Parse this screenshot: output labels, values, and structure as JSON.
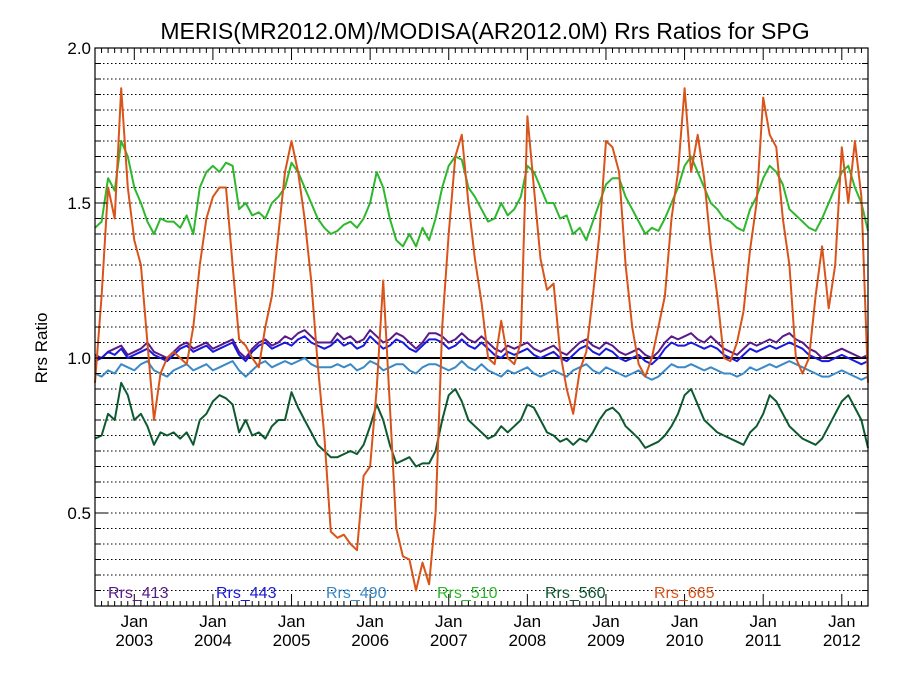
{
  "chart_data": {
    "type": "line",
    "title": "MERIS(MR2012.0M)/MODISA(AR2012.0M)  Rrs Ratios for SPG",
    "xlabel": "",
    "ylabel": "Rrs Ratio",
    "xlim": [
      "2002-07",
      "2012-05"
    ],
    "ylim": [
      0.2,
      2.0
    ],
    "yticks": [
      {
        "value": 0.5,
        "label": "0.5"
      },
      {
        "value": 1.0,
        "label": "1.0"
      },
      {
        "value": 1.5,
        "label": "1.5"
      },
      {
        "value": 2.0,
        "label": "2.0"
      }
    ],
    "xticks": [
      {
        "date": "2003-01",
        "month": "Jan",
        "year": "2003"
      },
      {
        "date": "2004-01",
        "month": "Jan",
        "year": "2004"
      },
      {
        "date": "2005-01",
        "month": "Jan",
        "year": "2005"
      },
      {
        "date": "2006-01",
        "month": "Jan",
        "year": "2006"
      },
      {
        "date": "2007-01",
        "month": "Jan",
        "year": "2007"
      },
      {
        "date": "2008-01",
        "month": "Jan",
        "year": "2008"
      },
      {
        "date": "2009-01",
        "month": "Jan",
        "year": "2009"
      },
      {
        "date": "2010-01",
        "month": "Jan",
        "year": "2010"
      },
      {
        "date": "2011-01",
        "month": "Jan",
        "year": "2011"
      },
      {
        "date": "2012-01",
        "month": "Jan",
        "year": "2012"
      }
    ],
    "reference_line": 1.0,
    "grid": "horizontal dotted",
    "legend_position": "bottom",
    "x_dates": [
      "2002-07",
      "2002-08",
      "2002-09",
      "2002-10",
      "2002-11",
      "2002-12",
      "2003-01",
      "2003-02",
      "2003-03",
      "2003-04",
      "2003-05",
      "2003-06",
      "2003-07",
      "2003-08",
      "2003-09",
      "2003-10",
      "2003-11",
      "2003-12",
      "2004-01",
      "2004-02",
      "2004-03",
      "2004-04",
      "2004-05",
      "2004-06",
      "2004-07",
      "2004-08",
      "2004-09",
      "2004-10",
      "2004-11",
      "2004-12",
      "2005-01",
      "2005-02",
      "2005-03",
      "2005-04",
      "2005-05",
      "2005-06",
      "2005-07",
      "2005-08",
      "2005-09",
      "2005-10",
      "2005-11",
      "2005-12",
      "2006-01",
      "2006-02",
      "2006-03",
      "2006-04",
      "2006-05",
      "2006-06",
      "2006-07",
      "2006-08",
      "2006-09",
      "2006-10",
      "2006-11",
      "2006-12",
      "2007-01",
      "2007-02",
      "2007-03",
      "2007-04",
      "2007-05",
      "2007-06",
      "2007-07",
      "2007-08",
      "2007-09",
      "2007-10",
      "2007-11",
      "2007-12",
      "2008-01",
      "2008-02",
      "2008-03",
      "2008-04",
      "2008-05",
      "2008-06",
      "2008-07",
      "2008-08",
      "2008-09",
      "2008-10",
      "2008-11",
      "2008-12",
      "2009-01",
      "2009-02",
      "2009-03",
      "2009-04",
      "2009-05",
      "2009-06",
      "2009-07",
      "2009-08",
      "2009-09",
      "2009-10",
      "2009-11",
      "2009-12",
      "2010-01",
      "2010-02",
      "2010-03",
      "2010-04",
      "2010-05",
      "2010-06",
      "2010-07",
      "2010-08",
      "2010-09",
      "2010-10",
      "2010-11",
      "2010-12",
      "2011-01",
      "2011-02",
      "2011-03",
      "2011-04",
      "2011-05",
      "2011-06",
      "2011-07",
      "2011-08",
      "2011-09",
      "2011-10",
      "2011-11",
      "2011-12",
      "2012-01",
      "2012-02",
      "2012-03",
      "2012-04",
      "2012-05"
    ],
    "series": [
      {
        "name": "Rrs_413",
        "color": "#5a1a8a",
        "values": [
          1.01,
          1.0,
          1.02,
          1.03,
          1.04,
          1.01,
          1.02,
          1.03,
          1.05,
          1.02,
          1.01,
          1.0,
          1.02,
          1.04,
          1.05,
          1.03,
          1.04,
          1.05,
          1.03,
          1.04,
          1.05,
          1.06,
          1.02,
          1.0,
          1.03,
          1.05,
          1.06,
          1.04,
          1.05,
          1.07,
          1.06,
          1.08,
          1.09,
          1.07,
          1.05,
          1.05,
          1.05,
          1.08,
          1.06,
          1.07,
          1.05,
          1.06,
          1.09,
          1.07,
          1.05,
          1.06,
          1.08,
          1.07,
          1.05,
          1.03,
          1.05,
          1.08,
          1.08,
          1.07,
          1.05,
          1.06,
          1.08,
          1.06,
          1.05,
          1.07,
          1.05,
          1.03,
          1.02,
          1.04,
          1.03,
          1.04,
          1.05,
          1.03,
          1.02,
          1.03,
          1.04,
          1.02,
          1.01,
          1.03,
          1.05,
          1.06,
          1.04,
          1.03,
          1.05,
          1.04,
          1.02,
          1.01,
          1.02,
          1.03,
          1.01,
          1.0,
          1.02,
          1.05,
          1.07,
          1.06,
          1.07,
          1.08,
          1.06,
          1.05,
          1.07,
          1.05,
          1.03,
          1.02,
          1.01,
          1.03,
          1.05,
          1.04,
          1.05,
          1.06,
          1.05,
          1.07,
          1.08,
          1.06,
          1.05,
          1.03,
          1.02,
          1.0,
          1.01,
          1.02,
          1.03,
          1.02,
          1.01,
          1.0,
          1.01
        ]
      },
      {
        "name": "Rrs_443",
        "color": "#1a1adc",
        "values": [
          0.99,
          1.0,
          1.02,
          1.01,
          1.03,
          1.0,
          1.01,
          1.02,
          1.03,
          1.01,
          1.0,
          0.99,
          1.01,
          1.03,
          1.04,
          1.02,
          1.03,
          1.04,
          1.02,
          1.03,
          1.04,
          1.05,
          1.01,
          0.99,
          1.02,
          1.04,
          1.05,
          1.03,
          1.04,
          1.05,
          1.04,
          1.06,
          1.07,
          1.05,
          1.04,
          1.03,
          1.04,
          1.06,
          1.04,
          1.05,
          1.03,
          1.04,
          1.07,
          1.05,
          1.03,
          1.04,
          1.06,
          1.05,
          1.03,
          1.02,
          1.04,
          1.06,
          1.06,
          1.05,
          1.03,
          1.04,
          1.06,
          1.04,
          1.03,
          1.05,
          1.03,
          1.01,
          1.0,
          1.02,
          1.01,
          1.02,
          1.03,
          1.01,
          1.0,
          1.01,
          1.02,
          1.0,
          0.99,
          1.01,
          1.03,
          1.04,
          1.02,
          1.01,
          1.03,
          1.02,
          1.0,
          0.99,
          1.0,
          1.01,
          0.99,
          0.98,
          1.0,
          1.03,
          1.05,
          1.04,
          1.04,
          1.05,
          1.04,
          1.03,
          1.04,
          1.03,
          1.01,
          1.0,
          0.99,
          1.01,
          1.03,
          1.02,
          1.03,
          1.04,
          1.03,
          1.04,
          1.05,
          1.04,
          1.03,
          1.01,
          1.0,
          0.99,
          0.99,
          1.0,
          1.01,
          1.0,
          0.99,
          0.98,
          0.99
        ]
      },
      {
        "name": "Rrs_490",
        "color": "#3a8ac8",
        "values": [
          0.95,
          0.94,
          0.96,
          0.95,
          0.98,
          0.97,
          0.96,
          0.98,
          0.99,
          0.96,
          0.95,
          0.94,
          0.96,
          0.97,
          0.98,
          0.96,
          0.97,
          0.98,
          0.96,
          0.97,
          0.98,
          0.99,
          0.96,
          0.94,
          0.96,
          0.98,
          0.99,
          0.97,
          0.98,
          0.99,
          0.98,
          0.99,
          1.0,
          0.98,
          0.97,
          0.97,
          0.97,
          0.98,
          0.97,
          0.98,
          0.96,
          0.97,
          0.99,
          0.98,
          0.96,
          0.97,
          0.98,
          0.98,
          0.96,
          0.95,
          0.97,
          0.98,
          0.98,
          0.97,
          0.96,
          0.97,
          0.99,
          0.97,
          0.96,
          0.98,
          0.96,
          0.95,
          0.94,
          0.96,
          0.95,
          0.96,
          0.97,
          0.95,
          0.94,
          0.95,
          0.96,
          0.95,
          0.94,
          0.96,
          0.97,
          0.98,
          0.96,
          0.95,
          0.97,
          0.96,
          0.95,
          0.94,
          0.95,
          0.96,
          0.94,
          0.93,
          0.94,
          0.96,
          0.98,
          0.97,
          0.97,
          0.98,
          0.97,
          0.96,
          0.97,
          0.96,
          0.95,
          0.95,
          0.94,
          0.95,
          0.97,
          0.96,
          0.97,
          0.98,
          0.97,
          0.98,
          0.99,
          0.98,
          0.97,
          0.96,
          0.95,
          0.94,
          0.94,
          0.95,
          0.96,
          0.95,
          0.94,
          0.93,
          0.94
        ]
      },
      {
        "name": "Rrs_510",
        "color": "#2eb82e",
        "values": [
          1.42,
          1.44,
          1.58,
          1.54,
          1.7,
          1.65,
          1.55,
          1.5,
          1.44,
          1.4,
          1.45,
          1.44,
          1.44,
          1.42,
          1.46,
          1.4,
          1.55,
          1.6,
          1.62,
          1.6,
          1.63,
          1.62,
          1.48,
          1.5,
          1.46,
          1.47,
          1.45,
          1.5,
          1.52,
          1.55,
          1.63,
          1.6,
          1.55,
          1.5,
          1.45,
          1.42,
          1.4,
          1.41,
          1.43,
          1.44,
          1.42,
          1.45,
          1.5,
          1.6,
          1.55,
          1.45,
          1.38,
          1.36,
          1.4,
          1.36,
          1.42,
          1.38,
          1.45,
          1.55,
          1.62,
          1.65,
          1.64,
          1.55,
          1.52,
          1.48,
          1.44,
          1.45,
          1.5,
          1.46,
          1.48,
          1.52,
          1.62,
          1.6,
          1.55,
          1.5,
          1.5,
          1.45,
          1.46,
          1.4,
          1.42,
          1.38,
          1.44,
          1.5,
          1.56,
          1.58,
          1.58,
          1.52,
          1.48,
          1.44,
          1.4,
          1.42,
          1.41,
          1.45,
          1.5,
          1.55,
          1.62,
          1.65,
          1.6,
          1.55,
          1.5,
          1.48,
          1.45,
          1.44,
          1.42,
          1.41,
          1.48,
          1.52,
          1.58,
          1.62,
          1.6,
          1.56,
          1.48,
          1.46,
          1.44,
          1.42,
          1.41,
          1.45,
          1.5,
          1.55,
          1.6,
          1.62,
          1.55,
          1.5,
          1.41
        ]
      },
      {
        "name": "Rrs_560",
        "color": "#0e5a30",
        "values": [
          0.74,
          0.75,
          0.82,
          0.8,
          0.92,
          0.88,
          0.8,
          0.82,
          0.78,
          0.72,
          0.76,
          0.75,
          0.76,
          0.74,
          0.76,
          0.72,
          0.8,
          0.82,
          0.86,
          0.88,
          0.87,
          0.85,
          0.76,
          0.8,
          0.75,
          0.76,
          0.74,
          0.78,
          0.8,
          0.8,
          0.89,
          0.84,
          0.8,
          0.76,
          0.72,
          0.7,
          0.68,
          0.68,
          0.69,
          0.7,
          0.69,
          0.72,
          0.78,
          0.85,
          0.8,
          0.72,
          0.66,
          0.67,
          0.68,
          0.65,
          0.66,
          0.66,
          0.7,
          0.8,
          0.88,
          0.9,
          0.86,
          0.8,
          0.78,
          0.76,
          0.74,
          0.75,
          0.78,
          0.76,
          0.78,
          0.8,
          0.85,
          0.84,
          0.8,
          0.76,
          0.75,
          0.73,
          0.74,
          0.72,
          0.74,
          0.73,
          0.76,
          0.8,
          0.83,
          0.84,
          0.82,
          0.78,
          0.76,
          0.74,
          0.71,
          0.72,
          0.73,
          0.75,
          0.78,
          0.82,
          0.88,
          0.9,
          0.85,
          0.8,
          0.78,
          0.76,
          0.75,
          0.74,
          0.73,
          0.72,
          0.76,
          0.78,
          0.82,
          0.88,
          0.86,
          0.82,
          0.78,
          0.76,
          0.74,
          0.73,
          0.72,
          0.74,
          0.78,
          0.82,
          0.86,
          0.88,
          0.84,
          0.8,
          0.71
        ]
      },
      {
        "name": "Rrs_665",
        "color": "#d9541a",
        "values": [
          0.92,
          1.2,
          1.55,
          1.45,
          1.87,
          1.55,
          1.38,
          1.3,
          1.05,
          0.8,
          0.95,
          1.0,
          1.02,
          1.0,
          0.98,
          1.1,
          1.3,
          1.45,
          1.52,
          1.55,
          1.55,
          1.3,
          1.06,
          1.04,
          1.0,
          0.97,
          1.1,
          1.2,
          1.4,
          1.6,
          1.7,
          1.6,
          1.45,
          1.25,
          0.98,
          0.75,
          0.44,
          0.42,
          0.43,
          0.4,
          0.38,
          0.62,
          0.65,
          0.9,
          1.25,
          0.85,
          0.45,
          0.36,
          0.35,
          0.25,
          0.34,
          0.27,
          0.5,
          1.1,
          1.4,
          1.65,
          1.72,
          1.5,
          1.32,
          1.18,
          1.0,
          0.98,
          1.12,
          1.0,
          0.98,
          1.05,
          1.78,
          1.55,
          1.32,
          1.22,
          1.24,
          1.02,
          0.9,
          0.82,
          0.96,
          1.02,
          1.2,
          1.4,
          1.7,
          1.68,
          1.6,
          1.3,
          1.1,
          0.98,
          0.94,
          1.0,
          1.1,
          1.2,
          1.45,
          1.6,
          1.87,
          1.6,
          1.72,
          1.58,
          1.36,
          1.2,
          1.0,
          0.99,
          1.05,
          1.15,
          1.35,
          1.5,
          1.84,
          1.72,
          1.68,
          1.45,
          1.3,
          1.0,
          0.95,
          1.0,
          1.2,
          1.36,
          1.16,
          1.3,
          1.68,
          1.5,
          1.7,
          1.52,
          0.92
        ]
      }
    ]
  }
}
